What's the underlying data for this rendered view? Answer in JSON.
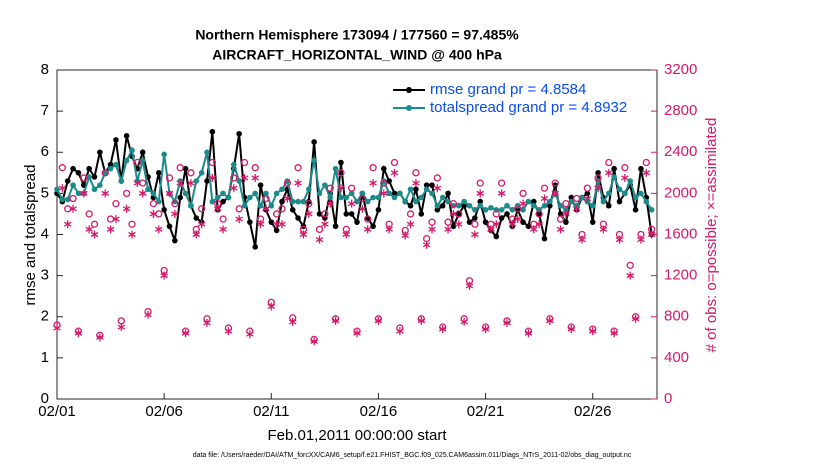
{
  "chart_data": {
    "type": "line",
    "title": "Northern Hemisphere 173094 / 177560 = 97.485%",
    "subtitle": "AIRCRAFT_HORIZONTAL_WIND @ 400 hPa",
    "xlabel": "Feb.01,2011 00:00:00 start",
    "ylabel": "rmse and totalspread",
    "y2label": "# of obs: o=possible; ×=assimilated",
    "footnote": "data file: /Users/raeder/DAI/ATM_forcXX/CAM6_setup/f.e21.FHIST_BGC.f09_025.CAM6assim.011/Diags_NTrS_2011-02/obs_diag_output.nc",
    "xlim": [
      0,
      28
    ],
    "xticks": [
      {
        "value": 0,
        "label": "02/01"
      },
      {
        "value": 5,
        "label": "02/06"
      },
      {
        "value": 10,
        "label": "02/11"
      },
      {
        "value": 15,
        "label": "02/16"
      },
      {
        "value": 20,
        "label": "02/21"
      },
      {
        "value": 25,
        "label": "02/26"
      }
    ],
    "ylim": [
      0,
      8
    ],
    "yticks": [
      0,
      1,
      2,
      3,
      4,
      5,
      6,
      7,
      8
    ],
    "y2lim": [
      0,
      3200
    ],
    "y2ticks": [
      0,
      400,
      800,
      1200,
      1600,
      2000,
      2400,
      2800,
      3200
    ],
    "y2color": "#d6196b",
    "legend_color": "#0a4cf0",
    "x": [
      0,
      0.25,
      0.5,
      0.75,
      1,
      1.25,
      1.5,
      1.75,
      2,
      2.25,
      2.5,
      2.75,
      3,
      3.25,
      3.5,
      3.75,
      4,
      4.25,
      4.5,
      4.75,
      5,
      5.25,
      5.5,
      5.75,
      6,
      6.25,
      6.5,
      6.75,
      7,
      7.25,
      7.5,
      7.75,
      8,
      8.25,
      8.5,
      8.75,
      9,
      9.25,
      9.5,
      9.75,
      10,
      10.25,
      10.5,
      10.75,
      11,
      11.25,
      11.5,
      11.75,
      12,
      12.25,
      12.5,
      12.75,
      13,
      13.25,
      13.5,
      13.75,
      14,
      14.25,
      14.5,
      14.75,
      15,
      15.25,
      15.5,
      15.75,
      16,
      16.25,
      16.5,
      16.75,
      17,
      17.25,
      17.5,
      17.75,
      18,
      18.25,
      18.5,
      18.75,
      19,
      19.25,
      19.5,
      19.75,
      20,
      20.25,
      20.5,
      20.75,
      21,
      21.25,
      21.5,
      21.75,
      22,
      22.25,
      22.5,
      22.75,
      23,
      23.25,
      23.5,
      23.75,
      24,
      24.25,
      24.5,
      24.75,
      25,
      25.25,
      25.5,
      25.75,
      26,
      26.25,
      26.5,
      26.75,
      27,
      27.25,
      27.5,
      27.75
    ],
    "series": [
      {
        "name": "rmse grand pr = 4.8584",
        "color": "#000000",
        "marker": "dot",
        "values": [
          5.0,
          4.8,
          5.3,
          5.6,
          5.5,
          5.2,
          5.6,
          5.4,
          6.0,
          5.5,
          5.7,
          6.3,
          5.3,
          6.4,
          5.9,
          5.6,
          6.0,
          5.4,
          4.9,
          5.5,
          4.6,
          4.2,
          3.85,
          4.9,
          5.6,
          4.7,
          4.4,
          4.3,
          5.3,
          6.5,
          4.6,
          4.8,
          4.9,
          5.6,
          6.45,
          4.9,
          4.3,
          3.7,
          5.2,
          4.6,
          4.3,
          4.1,
          4.8,
          5.1,
          4.6,
          4.4,
          4.2,
          4.8,
          6.25,
          4.5,
          4.4,
          5.0,
          4.2,
          5.75,
          4.5,
          4.5,
          4.3,
          5.0,
          4.4,
          4.2,
          4.6,
          5.6,
          5.3,
          5.0,
          5.0,
          4.8,
          4.7,
          5.1,
          4.5,
          5.2,
          5.2,
          4.6,
          4.7,
          5.0,
          4.2,
          4.5,
          4.7,
          4.3,
          4.4,
          4.8,
          4.3,
          4.1,
          3.95,
          4.4,
          4.5,
          4.2,
          4.6,
          4.3,
          4.2,
          4.8,
          4.5,
          3.9,
          4.7,
          5.2,
          4.5,
          4.3,
          4.9,
          4.6,
          4.9,
          5.0,
          4.3,
          5.5,
          4.9,
          4.7,
          5.6,
          4.8,
          5.0,
          5.2,
          4.6,
          5.6,
          4.9,
          4.0
        ]
      },
      {
        "name": "totalspread grand pr = 4.8932",
        "color": "#1b8b8b",
        "marker": "dot",
        "values": [
          5.1,
          4.85,
          4.85,
          5.2,
          5.0,
          5.0,
          5.4,
          5.1,
          5.2,
          5.5,
          5.6,
          5.7,
          5.3,
          5.8,
          6.05,
          5.3,
          5.8,
          5.1,
          5.0,
          4.8,
          5.95,
          5.0,
          4.8,
          5.3,
          5.0,
          4.7,
          5.3,
          5.5,
          6.0,
          4.8,
          4.9,
          5.0,
          4.9,
          5.7,
          5.3,
          4.7,
          4.9,
          5.0,
          4.7,
          5.0,
          4.7,
          5.0,
          5.1,
          5.3,
          4.8,
          4.8,
          4.8,
          5.1,
          5.8,
          5.0,
          5.2,
          4.9,
          5.6,
          4.9,
          4.9,
          5.0,
          4.8,
          5.0,
          4.8,
          4.9,
          4.9,
          5.3,
          5.0,
          4.9,
          5.0,
          4.8,
          5.1,
          4.8,
          4.9,
          5.1,
          5.0,
          4.7,
          4.9,
          4.8,
          4.7,
          4.7,
          4.8,
          4.7,
          4.6,
          4.7,
          4.6,
          4.65,
          4.6,
          4.6,
          4.7,
          4.6,
          4.7,
          4.6,
          4.8,
          4.7,
          4.6,
          4.7,
          4.8,
          5.0,
          4.7,
          4.6,
          4.8,
          4.7,
          4.9,
          4.8,
          4.7,
          5.3,
          4.8,
          5.0,
          5.4,
          5.1,
          5.0,
          5.3,
          4.9,
          5.0,
          4.8,
          4.6
        ]
      },
      {
        "color": "#d6196b",
        "marker": "o",
        "axis": "y2",
        "values": [
          720,
          2250,
          1850,
          1950,
          660,
          2150,
          1800,
          1700,
          620,
          2200,
          1750,
          1900,
          760,
          2000,
          1700,
          2300,
          2100,
          850,
          1900,
          1800,
          1250,
          2150,
          1900,
          2250,
          660,
          2200,
          1650,
          1850,
          780,
          2300,
          1900,
          1750,
          690,
          2150,
          1850,
          2300,
          660,
          2250,
          1750,
          1950,
          940,
          1800,
          1850,
          2100,
          790,
          2250,
          1650,
          1900,
          580,
          1650,
          1800,
          2050,
          780,
          2200,
          1650,
          2050,
          660,
          1950,
          1750,
          2250,
          780,
          2100,
          1700,
          2300,
          690,
          1640,
          1800,
          2200,
          780,
          1560,
          1720,
          2150,
          700,
          1720,
          1900,
          1800,
          780,
          1150,
          1700,
          2100,
          700,
          1700,
          1800,
          2100,
          760,
          1750,
          1850,
          2000,
          660,
          1700,
          1800,
          2050,
          780,
          2100,
          1750,
          1900,
          700,
          1950,
          1600,
          2050,
          680,
          2150,
          1700,
          2300,
          660,
          1600,
          2250,
          1300,
          800,
          1600,
          2300,
          1650
        ]
      },
      {
        "color": "#d6196b",
        "marker": "asterisk",
        "axis": "y2",
        "values": [
          690,
          2050,
          1700,
          1850,
          640,
          2000,
          1650,
          1600,
          600,
          2000,
          1650,
          1750,
          700,
          1850,
          1600,
          2100,
          2000,
          820,
          1800,
          1650,
          1200,
          2000,
          1800,
          2100,
          640,
          2100,
          1600,
          1700,
          740,
          2150,
          1850,
          1650,
          660,
          2050,
          1750,
          2150,
          630,
          2150,
          1700,
          1850,
          900,
          1700,
          1700,
          1950,
          750,
          2100,
          1600,
          1800,
          560,
          1550,
          1700,
          1900,
          760,
          2050,
          1600,
          1900,
          640,
          1850,
          1650,
          2100,
          760,
          2000,
          1650,
          2200,
          660,
          1590,
          1700,
          2100,
          760,
          1500,
          1650,
          2050,
          680,
          1650,
          1800,
          1700,
          750,
          1100,
          1600,
          2000,
          680,
          1650,
          1700,
          2000,
          740,
          1700,
          1750,
          1900,
          640,
          1650,
          1700,
          1950,
          760,
          2000,
          1650,
          1800,
          680,
          1850,
          1550,
          1950,
          660,
          2050,
          1650,
          2200,
          640,
          1550,
          2150,
          1200,
          780,
          1550,
          2200,
          1600
        ]
      }
    ]
  }
}
